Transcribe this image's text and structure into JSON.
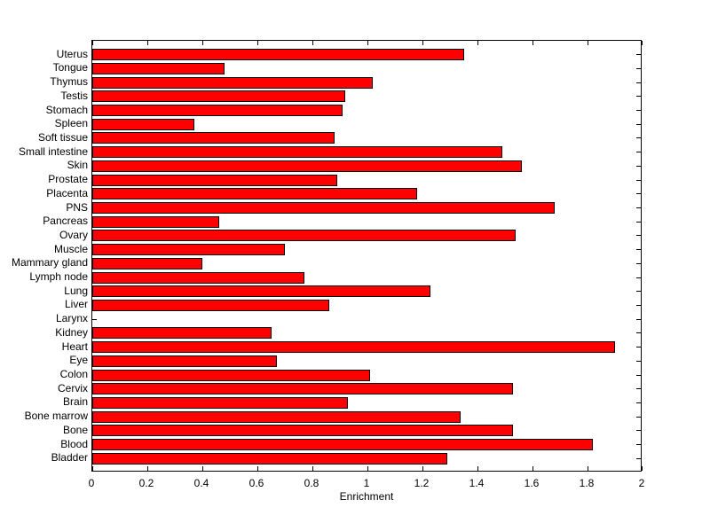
{
  "figure": {
    "background_color": "#ffffff",
    "bar_color": "#ff0000",
    "bar_edge_color": "#000000",
    "axis_color": "#000000"
  },
  "chart_data": {
    "type": "bar",
    "orientation": "horizontal",
    "title": "",
    "xlabel": "Enrichment",
    "ylabel": "",
    "xlim": [
      0,
      2
    ],
    "grid": false,
    "legend": null,
    "xticks": [
      0,
      0.2,
      0.4,
      0.6,
      0.8,
      1,
      1.2,
      1.4,
      1.6,
      1.8,
      2
    ],
    "xtick_labels": [
      "0",
      "0.2",
      "0.4",
      "0.6",
      "0.8",
      "1",
      "1.2",
      "1.4",
      "1.6",
      "1.8",
      "2"
    ],
    "categories_top_to_bottom": [
      "Uterus",
      "Tongue",
      "Thymus",
      "Testis",
      "Stomach",
      "Spleen",
      "Soft tissue",
      "Small intestine",
      "Skin",
      "Prostate",
      "Placenta",
      "PNS",
      "Pancreas",
      "Ovary",
      "Muscle",
      "Mammary gland",
      "Lymph node",
      "Lung",
      "Liver",
      "Larynx",
      "Kidney",
      "Heart",
      "Eye",
      "Colon",
      "Cervix",
      "Brain",
      "Bone marrow",
      "Bone",
      "Blood",
      "Bladder"
    ],
    "values": [
      1.35,
      0.48,
      1.02,
      0.92,
      0.91,
      0.37,
      0.88,
      1.49,
      1.56,
      0.89,
      1.18,
      1.68,
      0.46,
      1.54,
      0.7,
      0.4,
      0.77,
      1.23,
      0.86,
      0.0,
      0.65,
      1.9,
      0.67,
      1.01,
      1.53,
      0.93,
      1.34,
      1.53,
      1.82,
      1.29
    ]
  }
}
